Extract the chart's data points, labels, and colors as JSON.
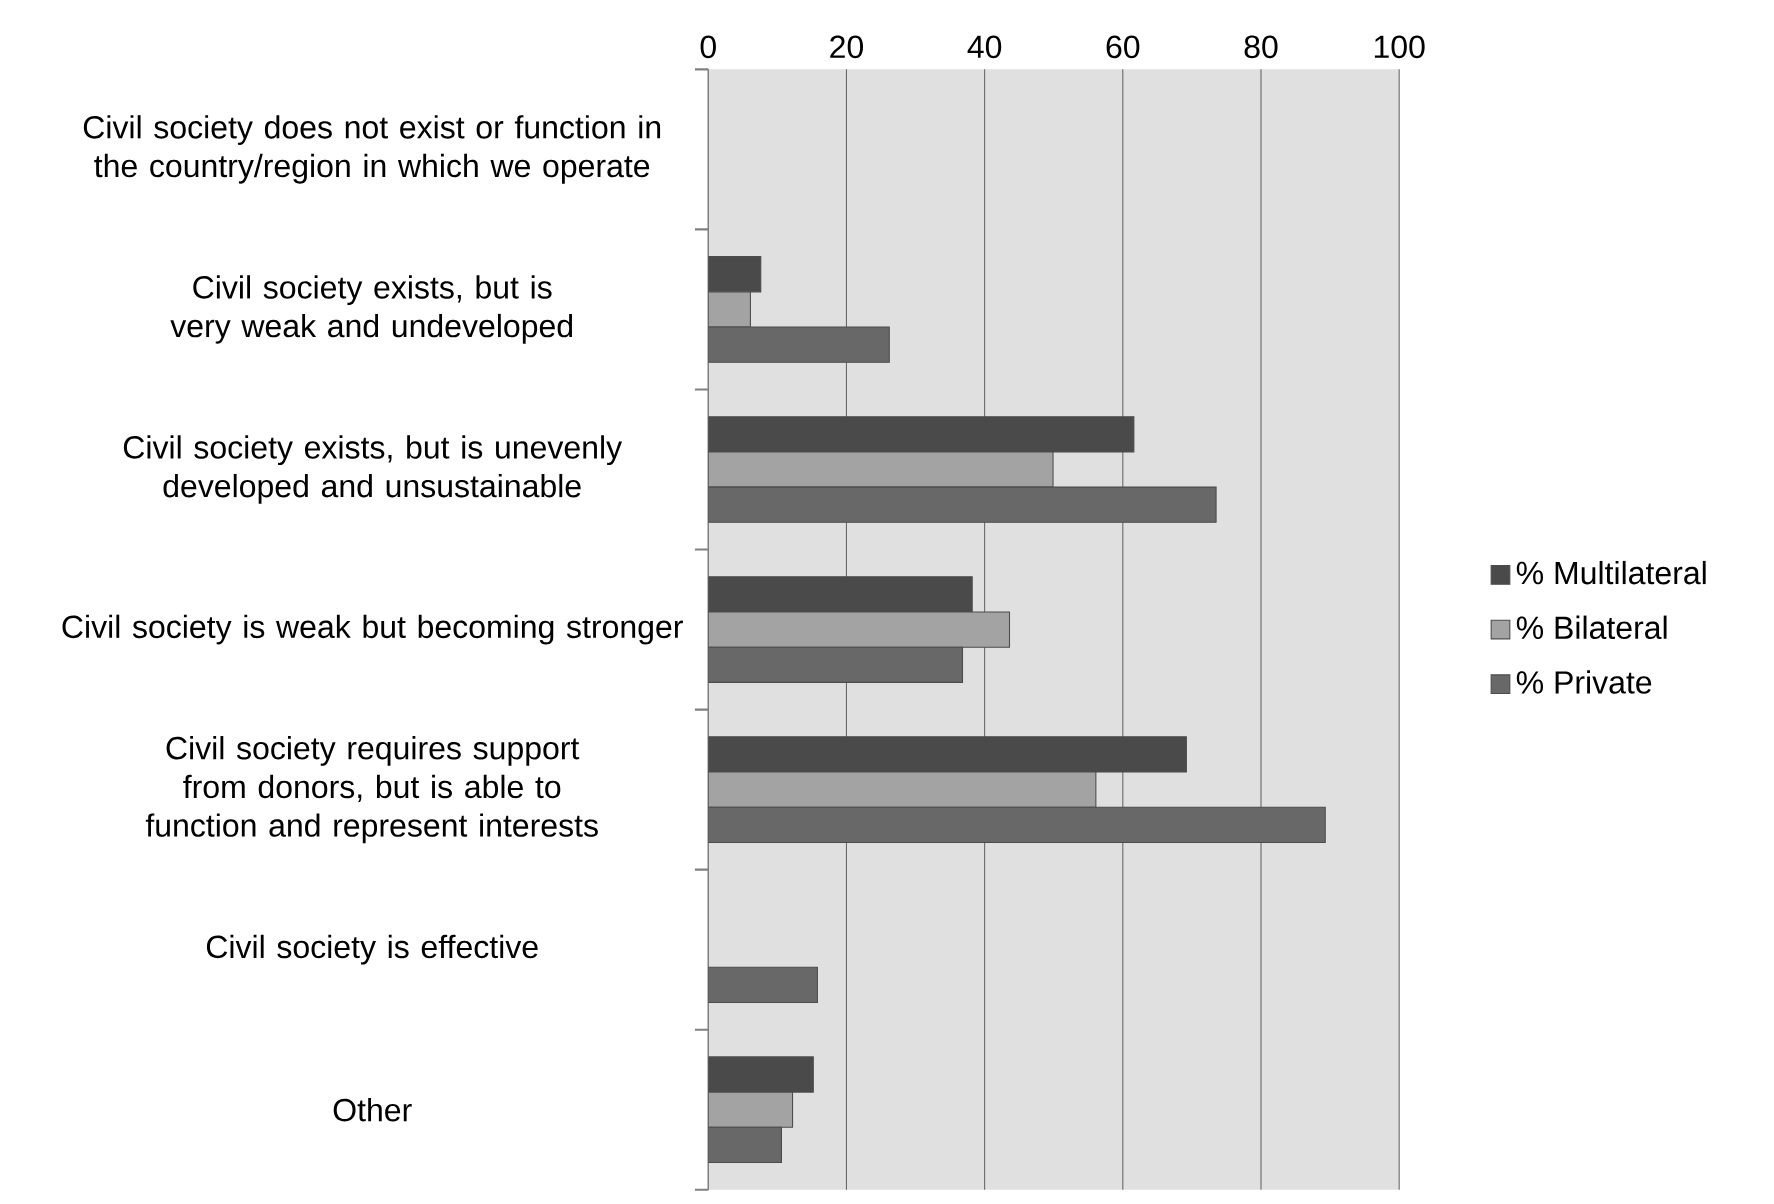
{
  "chart_data": {
    "type": "bar",
    "orientation": "horizontal",
    "categories": [
      "Civil society does not exist or function in the country/region in which we operate",
      "Civil society exists, but is very weak and undeveloped",
      "Civil society exists, but is unevenly developed and unsustainable",
      "Civil society is weak but becoming stronger",
      "Civil society requires support from donors, but is able to function and represent interests",
      "Civil society is effective",
      "Other"
    ],
    "series": [
      {
        "name": "% Multilateral",
        "color": "#4a4a4a",
        "values": [
          null,
          7.6,
          61.6,
          38.2,
          69.2,
          null,
          15.2
        ]
      },
      {
        "name": "% Bilateral",
        "color": "#a3a3a3",
        "values": [
          null,
          6.1,
          49.9,
          43.6,
          56.1,
          null,
          12.2
        ]
      },
      {
        "name": "% Private",
        "color": "#686868",
        "values": [
          null,
          26.2,
          73.5,
          36.8,
          89.3,
          15.8,
          10.6
        ]
      }
    ],
    "xlim": [
      0,
      100
    ],
    "xticks": [
      0,
      20,
      40,
      60,
      80,
      100
    ],
    "grid": "x",
    "legend": "right"
  }
}
